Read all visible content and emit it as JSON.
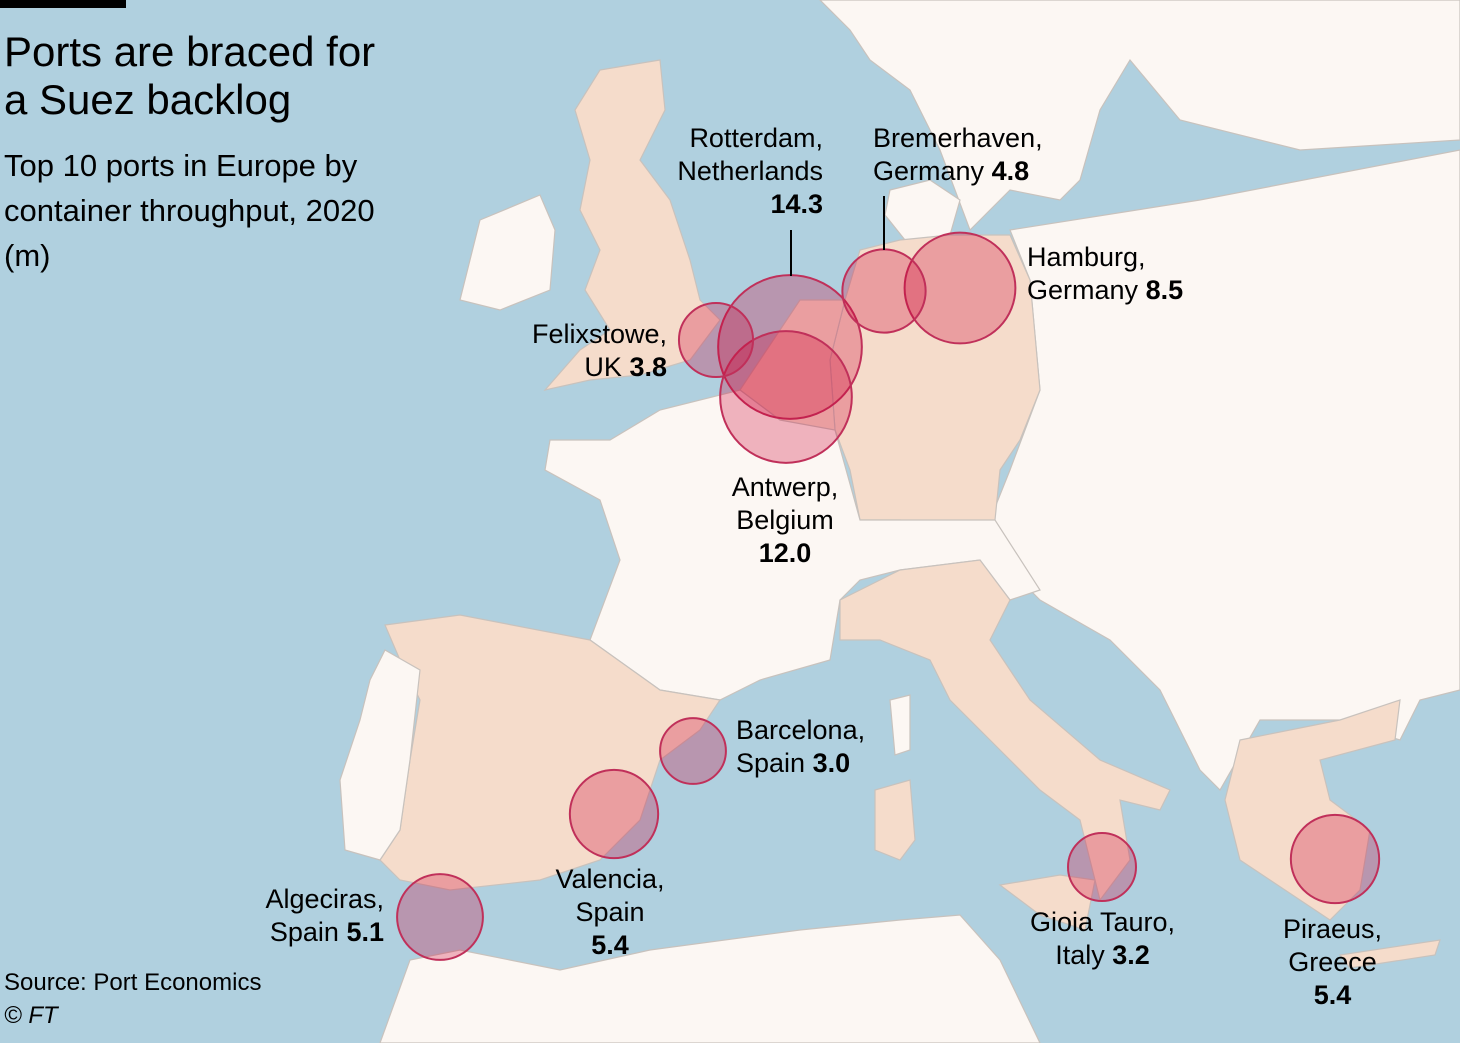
{
  "title": "Ports are braced for a Suez backlog",
  "subtitle": "Top 10 ports in Europe by container throughput, 2020 (m)",
  "source": "Source: Port Economics",
  "credit": "© FT",
  "colors": {
    "sea": "#b0d0df",
    "land": "#fcf7f3",
    "highlight": "#f5dccb",
    "bubble": "#cc0033",
    "bubble_stroke": "#c0305a"
  },
  "ports": [
    {
      "name": "Rotterdam,",
      "country": "Netherlands",
      "value": "14.3"
    },
    {
      "name": "Antwerp,",
      "country": "Belgium",
      "value": "12.0"
    },
    {
      "name": "Hamburg,",
      "country": "Germany",
      "value": "8.5"
    },
    {
      "name": "Valencia,",
      "country": "Spain",
      "value": "5.4"
    },
    {
      "name": "Piraeus,",
      "country": "Greece",
      "value": "5.4"
    },
    {
      "name": "Algeciras,",
      "country": "Spain",
      "value": "5.1"
    },
    {
      "name": "Bremerhaven,",
      "country": "Germany",
      "value": "4.8"
    },
    {
      "name": "Felixstowe,",
      "country": "UK",
      "value": "3.8"
    },
    {
      "name": "Gioia Tauro,",
      "country": "Italy",
      "value": "3.2"
    },
    {
      "name": "Barcelona,",
      "country": "Spain",
      "value": "3.0"
    }
  ]
}
